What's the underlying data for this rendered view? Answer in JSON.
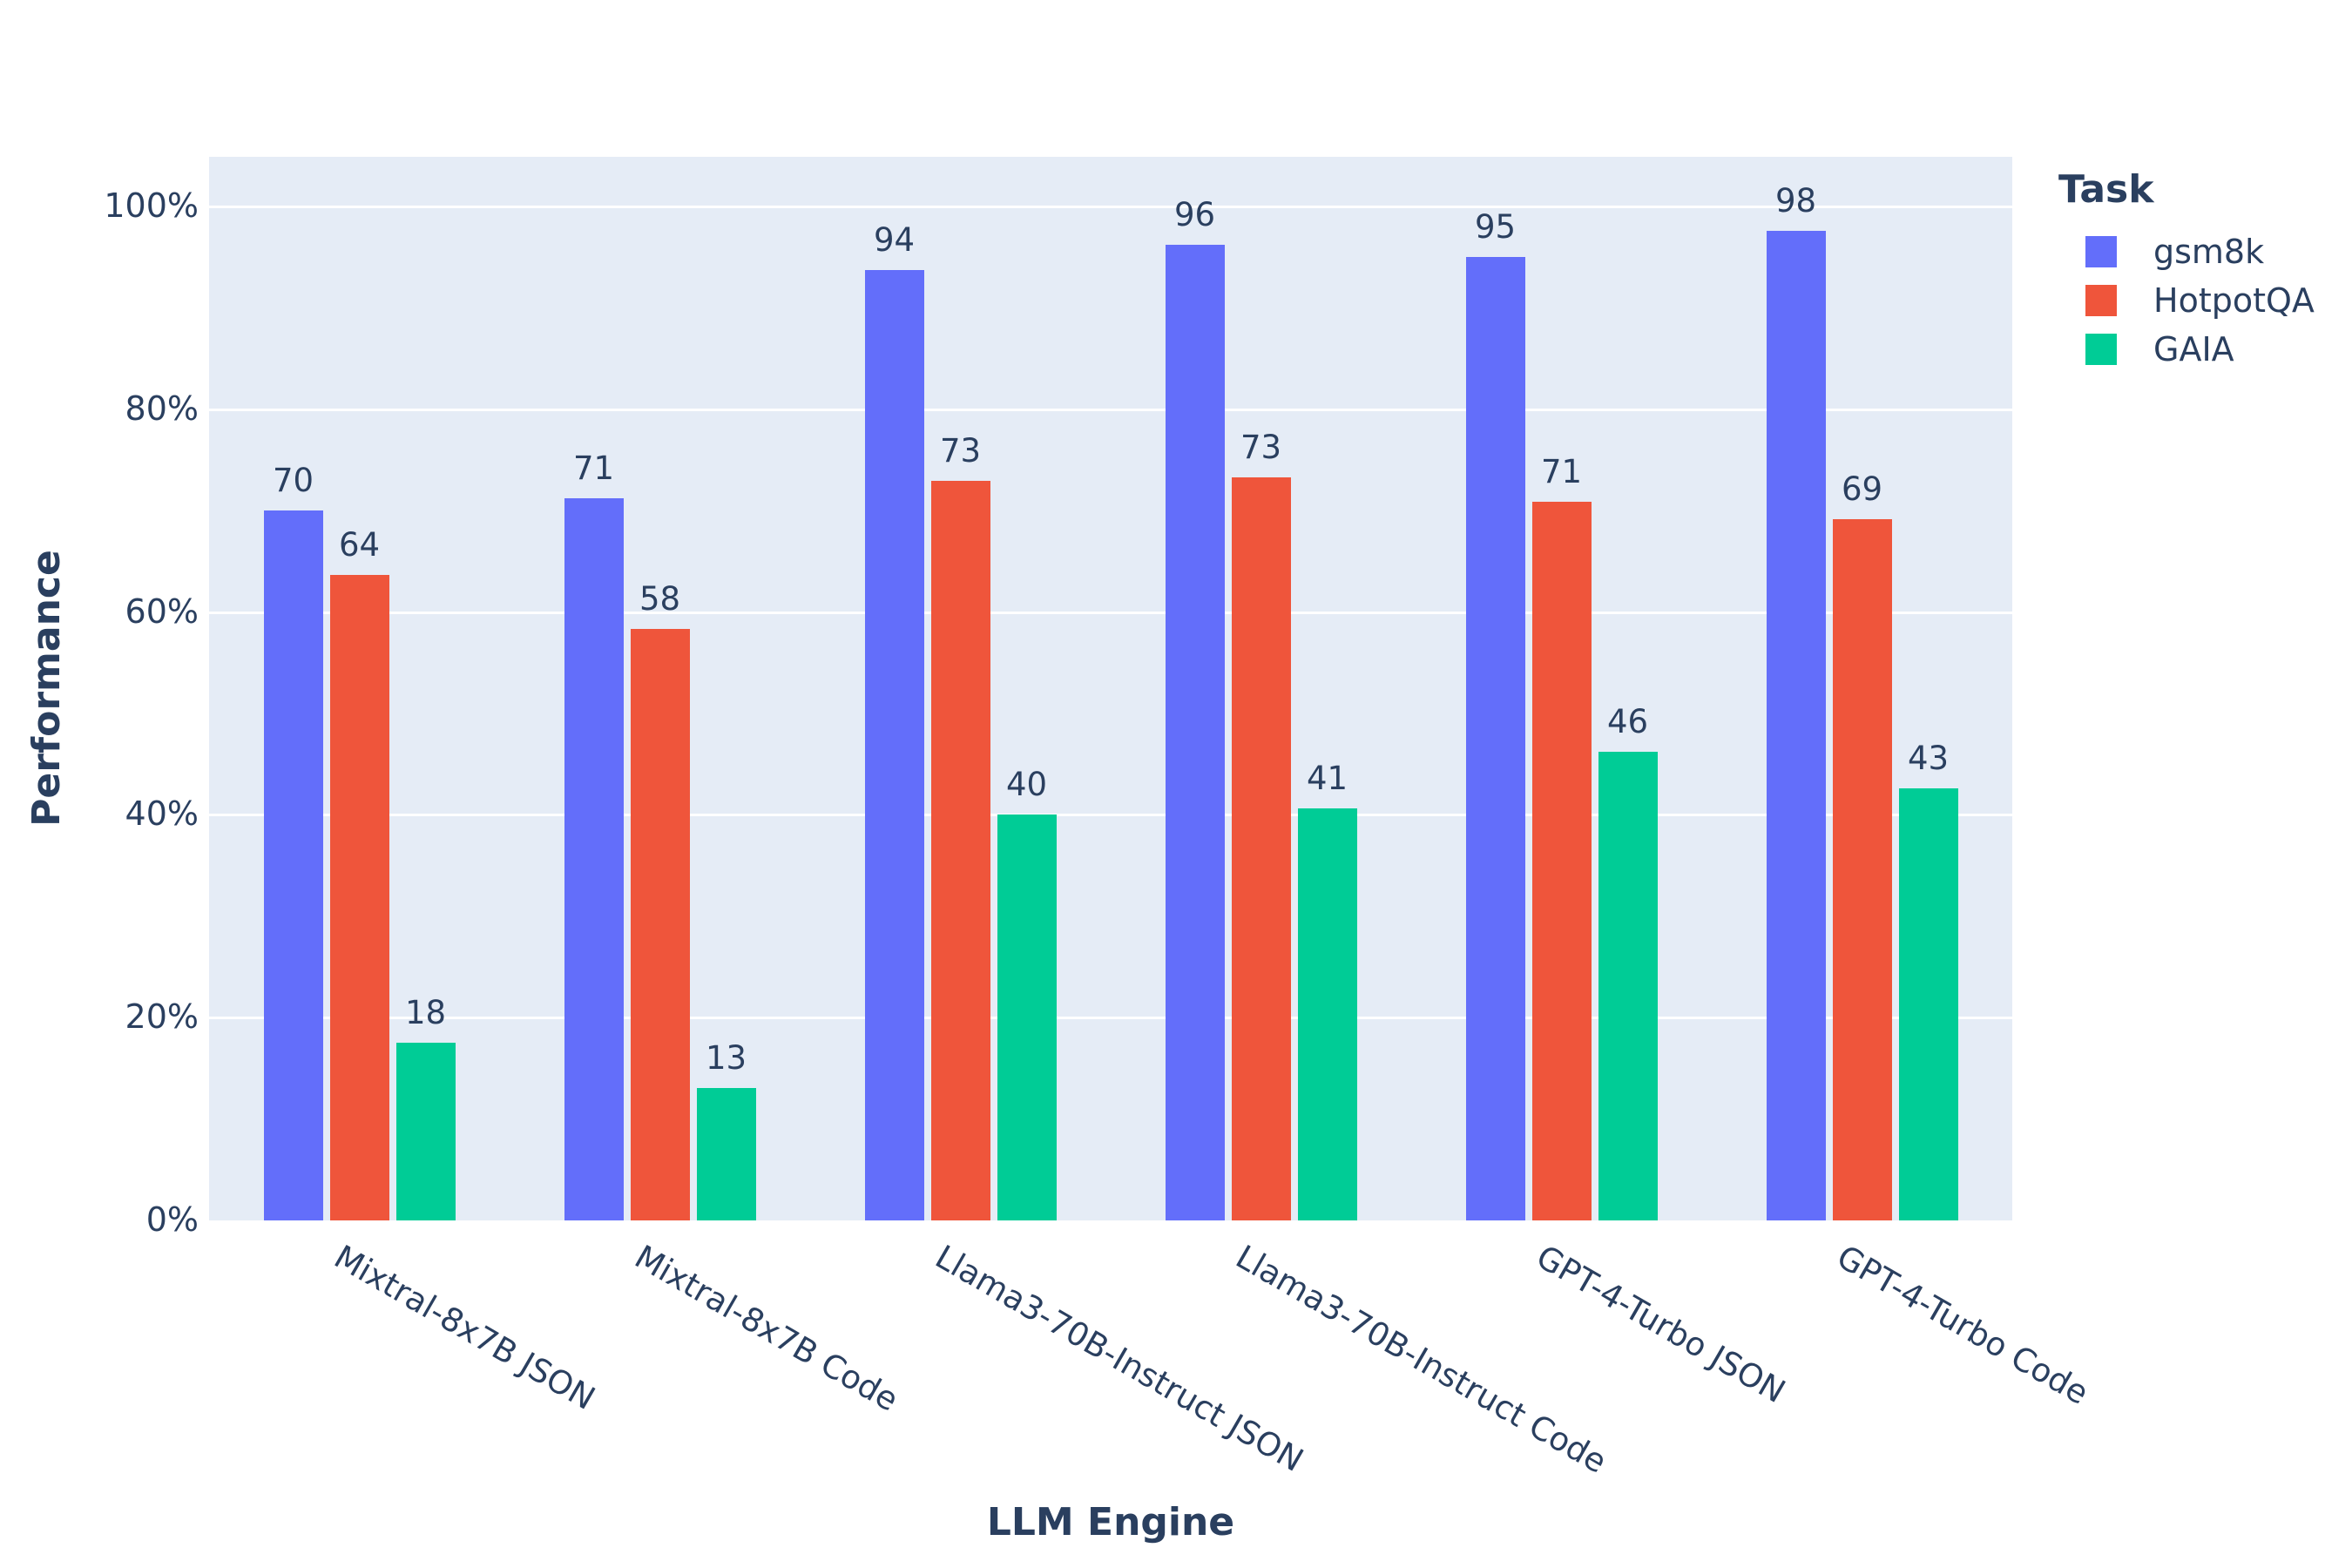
{
  "chart_data": {
    "type": "bar",
    "title": "",
    "xlabel": "LLM Engine",
    "ylabel": "Performance",
    "legend_title": "Task",
    "legend_position": "top-right",
    "grid": true,
    "categories": [
      "Mixtral-8x7B JSON",
      "Mixtral-8x7B Code",
      "Llama3-70B-Instruct JSON",
      "Llama3-70B-Instruct Code",
      "GPT-4-Turbo JSON",
      "GPT-4-Turbo Code"
    ],
    "series": [
      {
        "name": "gsm8k",
        "color": "#636EFA",
        "values": [
          70,
          71,
          94,
          96,
          95,
          98
        ],
        "bar_values": [
          70.0,
          71.2,
          93.7,
          96.2,
          95.0,
          97.6
        ]
      },
      {
        "name": "HotpotQA",
        "color": "#EF553B",
        "values": [
          64,
          58,
          73,
          73,
          71,
          69
        ],
        "bar_values": [
          63.7,
          58.3,
          72.9,
          73.3,
          70.9,
          69.2
        ]
      },
      {
        "name": "GAIA",
        "color": "#00CC96",
        "values": [
          18,
          13,
          40,
          41,
          46,
          43
        ],
        "bar_values": [
          17.5,
          13.1,
          40.0,
          40.6,
          46.2,
          42.6
        ]
      }
    ],
    "yticks": {
      "labels": [
        "0%",
        "20%",
        "40%",
        "60%",
        "80%",
        "100%"
      ],
      "values": [
        0,
        20,
        40,
        60,
        80,
        100
      ]
    },
    "ylim": [
      0,
      104.9
    ],
    "colors": {
      "plot_background": "#E5ECF6",
      "page_background": "#ffffff",
      "gridline": "#ffffff",
      "text": "#2a3f5f"
    }
  }
}
